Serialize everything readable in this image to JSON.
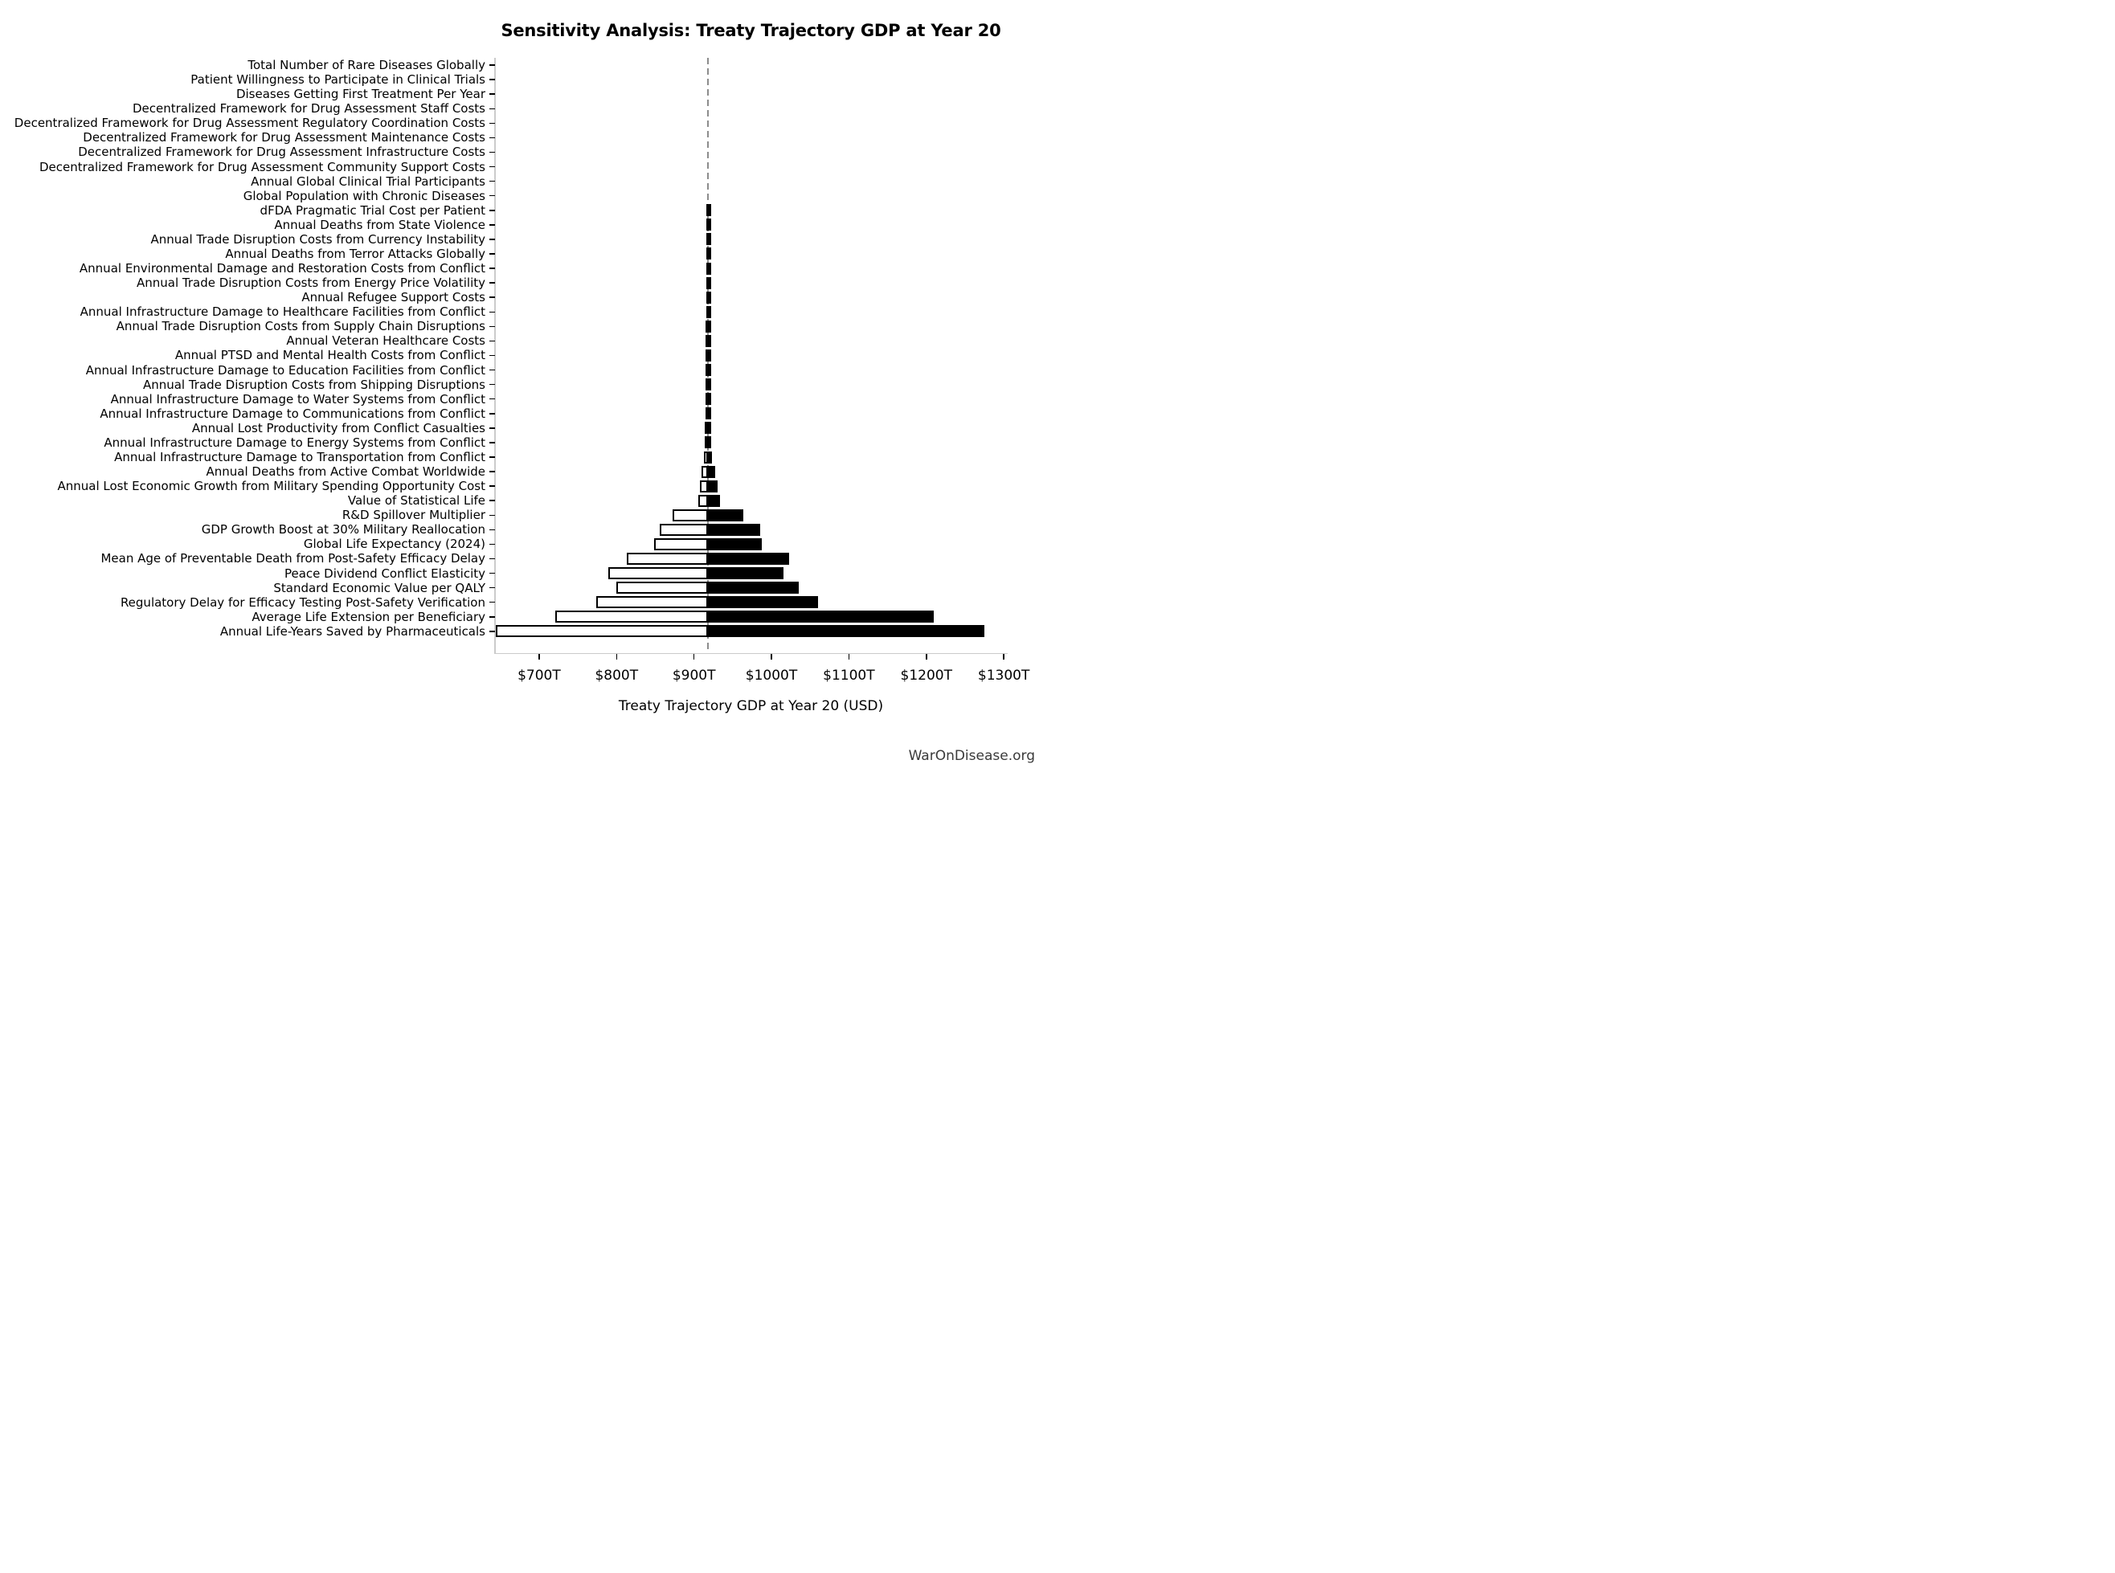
{
  "title": "Sensitivity Analysis: Treaty Trajectory GDP at Year 20",
  "watermark": "WarOnDisease.org",
  "axis": {
    "xlabel": "Treaty Trajectory GDP at Year 20 (USD)",
    "xticks": [
      {
        "value": 700,
        "label": "$700T"
      },
      {
        "value": 800,
        "label": "$800T"
      },
      {
        "value": 900,
        "label": "$900T"
      },
      {
        "value": 1000,
        "label": "$1000T"
      },
      {
        "value": 1100,
        "label": "$1100T"
      },
      {
        "value": 1200,
        "label": "$1200T"
      },
      {
        "value": 1300,
        "label": "$1300T"
      }
    ]
  },
  "chart_data": {
    "type": "bar",
    "subtype": "horizontal-tornado",
    "title": "Sensitivity Analysis: Treaty Trajectory GDP at Year 20",
    "xlabel": "Treaty Trajectory GDP at Year 20 (USD)",
    "unit": "trillion USD",
    "baseline": 918,
    "xlim": [
      643,
      1304
    ],
    "grid": false,
    "legend_position": "none",
    "colors": {
      "low_fill": "#ffffff",
      "high_fill": "#000000",
      "bar_edge": "#000000",
      "baseline_line": "#8c8c8c",
      "spine": "#cbcbcb"
    },
    "categories": [
      "Total Number of Rare Diseases Globally",
      "Patient Willingness to Participate in Clinical Trials",
      "Diseases Getting First Treatment Per Year",
      "Decentralized Framework for Drug Assessment Staff Costs",
      "Decentralized Framework for Drug Assessment Regulatory Coordination Costs",
      "Decentralized Framework for Drug Assessment Maintenance Costs",
      "Decentralized Framework for Drug Assessment Infrastructure Costs",
      "Decentralized Framework for Drug Assessment Community Support Costs",
      "Annual Global Clinical Trial Participants",
      "Global Population with Chronic Diseases",
      "dFDA Pragmatic Trial Cost per Patient",
      "Annual Deaths from State Violence",
      "Annual Trade Disruption Costs from Currency Instability",
      "Annual Deaths from Terror Attacks Globally",
      "Annual Environmental Damage and Restoration Costs from Conflict",
      "Annual Trade Disruption Costs from Energy Price Volatility",
      "Annual Refugee Support Costs",
      "Annual Infrastructure Damage to Healthcare Facilities from Conflict",
      "Annual Trade Disruption Costs from Supply Chain Disruptions",
      "Annual Veteran Healthcare Costs",
      "Annual PTSD and Mental Health Costs from Conflict",
      "Annual Infrastructure Damage to Education Facilities from Conflict",
      "Annual Trade Disruption Costs from Shipping Disruptions",
      "Annual Infrastructure Damage to Water Systems from Conflict",
      "Annual Infrastructure Damage to Communications from Conflict",
      "Annual Lost Productivity from Conflict Casualties",
      "Annual Infrastructure Damage to Energy Systems from Conflict",
      "Annual Infrastructure Damage to Transportation from Conflict",
      "Annual Deaths from Active Combat Worldwide",
      "Annual Lost Economic Growth from Military Spending Opportunity Cost",
      "Value of Statistical Life",
      "R&D Spillover Multiplier",
      "GDP Growth Boost at 30% Military Reallocation",
      "Global Life Expectancy (2024)",
      "Mean Age of Preventable Death from Post-Safety Efficacy Delay",
      "Peace Dividend Conflict Elasticity",
      "Standard Economic Value per QALY",
      "Regulatory Delay for Efficacy Testing Post-Safety Verification",
      "Average Life Extension per Beneficiary",
      "Annual Life-Years Saved by Pharmaceuticals"
    ],
    "series": [
      {
        "name": "Low value (white bar)",
        "values": [
          918,
          918,
          918,
          918,
          918,
          918,
          918,
          918,
          918,
          918,
          916.2,
          916.1,
          916.0,
          915.9,
          915.7,
          915.6,
          915.5,
          915.4,
          915.2,
          915.1,
          915.0,
          914.9,
          914.7,
          914.6,
          914.4,
          914.2,
          913.7,
          913.2,
          910.0,
          907.5,
          905.5,
          872.2,
          855.3,
          848.8,
          813.4,
          789.7,
          800.0,
          774.2,
          720.8,
          644.5
        ]
      },
      {
        "name": "High value (black bar)",
        "values": [
          918,
          918,
          918,
          918,
          918,
          918,
          918,
          918,
          918,
          918,
          919.4,
          919.5,
          919.6,
          919.8,
          920.0,
          920.1,
          920.2,
          920.4,
          920.5,
          920.7,
          920.8,
          921.0,
          921.1,
          921.3,
          921.5,
          921.7,
          922.3,
          922.9,
          927.0,
          930.8,
          933.7,
          964.1,
          985.4,
          987.7,
          1022.5,
          1015.5,
          1035.5,
          1060.0,
          1209.3,
          1274.6
        ]
      }
    ]
  }
}
